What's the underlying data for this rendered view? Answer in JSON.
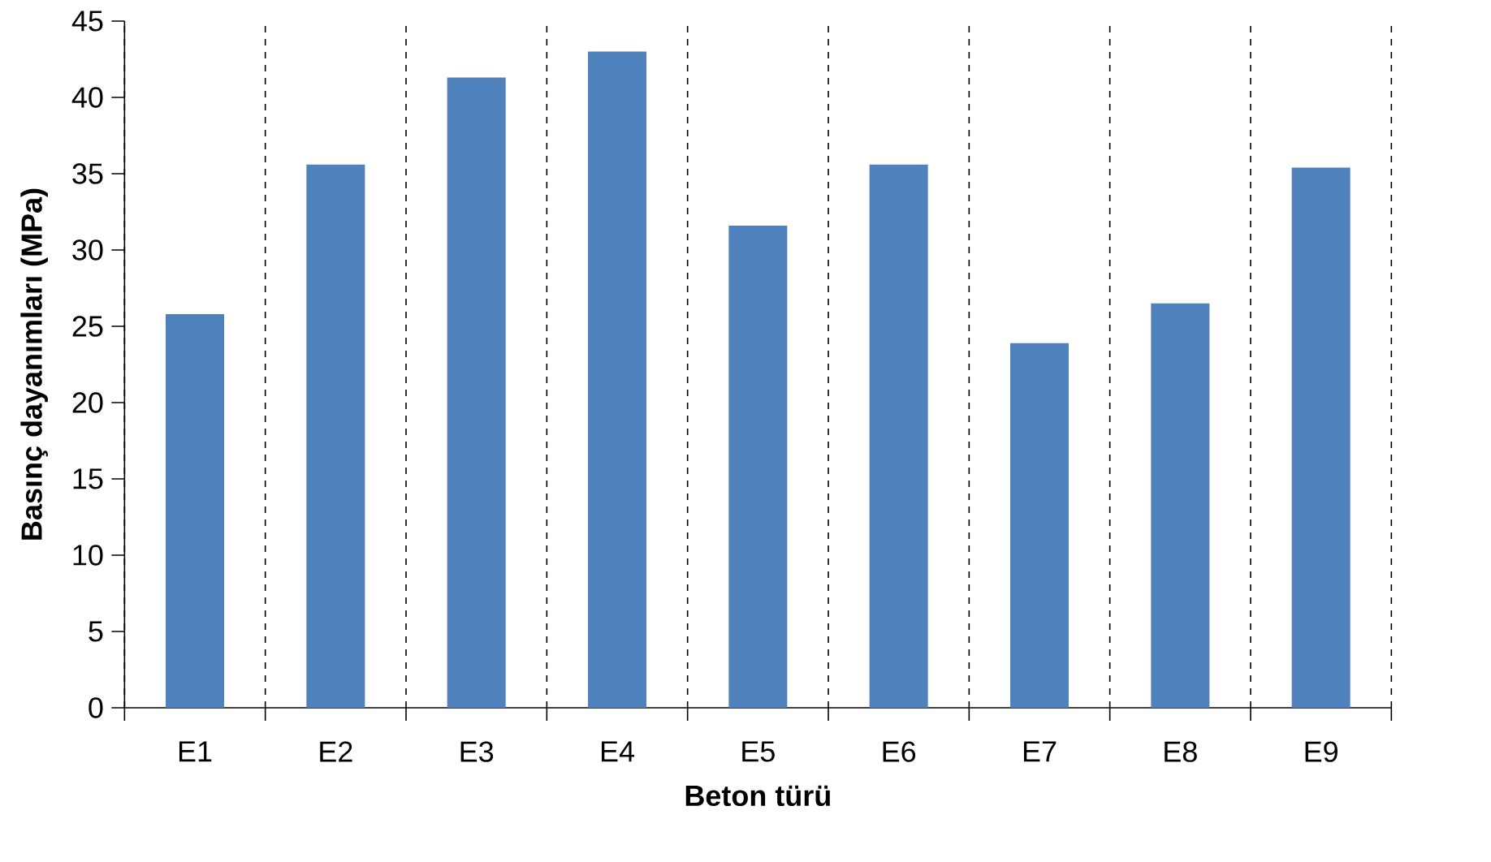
{
  "chart_data": {
    "type": "bar",
    "xlabel": "Beton türü",
    "ylabel": "Basınç dayanımları (MPa)",
    "categories": [
      "E1",
      "E2",
      "E3",
      "E4",
      "E5",
      "E6",
      "E7",
      "E8",
      "E9"
    ],
    "values": [
      25.8,
      35.6,
      41.3,
      43.0,
      31.6,
      35.6,
      23.9,
      26.5,
      35.4
    ],
    "color": "#4f81bd",
    "ylim": [
      0,
      45
    ],
    "yticks": [
      0,
      5,
      10,
      15,
      20,
      25,
      30,
      35,
      40,
      45
    ],
    "grid": "x"
  }
}
